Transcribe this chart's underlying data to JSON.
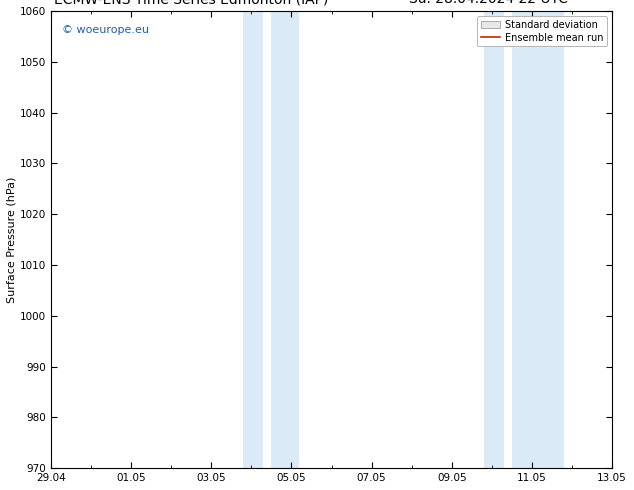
{
  "ylabel": "Surface Pressure (hPa)",
  "ylim": [
    970,
    1060
  ],
  "yticks": [
    970,
    980,
    990,
    1000,
    1010,
    1020,
    1030,
    1040,
    1050,
    1060
  ],
  "xtick_labels": [
    "29.04",
    "01.05",
    "03.05",
    "05.05",
    "07.05",
    "09.05",
    "11.05",
    "13.05"
  ],
  "xtick_positions": [
    0,
    2,
    4,
    6,
    8,
    10,
    12,
    14
  ],
  "xlim": [
    0,
    14
  ],
  "shaded_bands": [
    {
      "x_start": 4.8,
      "x_end": 5.3
    },
    {
      "x_start": 5.5,
      "x_end": 6.2
    },
    {
      "x_start": 10.8,
      "x_end": 11.3
    },
    {
      "x_start": 11.5,
      "x_end": 12.8
    }
  ],
  "shaded_color": "#daeaf7",
  "background_color": "#ffffff",
  "watermark_text": "© woeurope.eu",
  "watermark_color": "#1a5fb4",
  "legend_std_label": "Standard deviation",
  "legend_mean_label": "Ensemble mean run",
  "legend_std_facecolor": "#e8e8e8",
  "legend_std_edgecolor": "#aaaaaa",
  "legend_mean_color": "#cc2200",
  "title_fontsize": 10,
  "ylabel_fontsize": 8,
  "tick_fontsize": 7.5,
  "watermark_fontsize": 8,
  "legend_fontsize": 7
}
